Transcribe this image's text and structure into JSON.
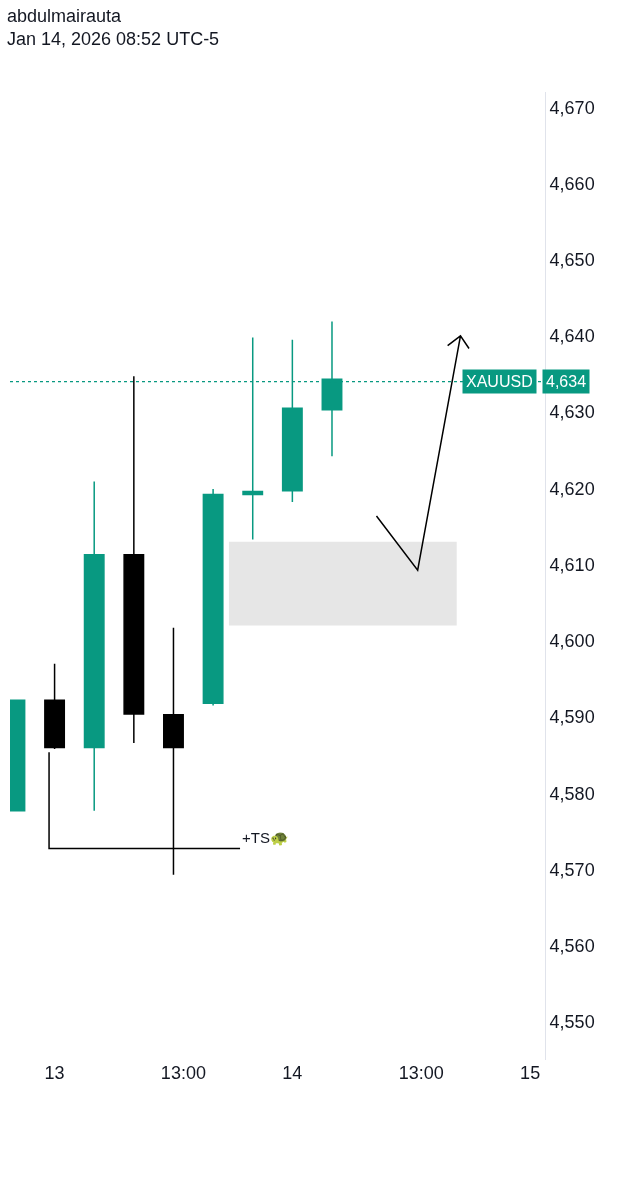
{
  "chart_data": {
    "type": "candlestick",
    "title": "abdulmairauta",
    "subtitle": "Jan 14, 2026 08:52 UTC-5",
    "x": [
      "2026-01-12T20:00",
      "2026-01-13T00:00",
      "2026-01-13T04:00",
      "2026-01-13T08:00",
      "2026-01-13T12:00",
      "2026-01-13T16:00",
      "2026-01-13T20:00",
      "2026-01-14T00:00",
      "2026-01-14T04:00"
    ],
    "ohlc": [
      [
        4577.7,
        4592.2,
        4577.7,
        4592.2
      ],
      [
        4592.2,
        4597,
        4585.8,
        4586.0
      ],
      [
        4586.0,
        4620.9,
        4577.7,
        4611.3
      ],
      [
        4611.3,
        4634.7,
        4586.6,
        4590.4
      ],
      [
        4590.3,
        4601.7,
        4569.3,
        4586.0
      ],
      [
        4591.8,
        4619.9,
        4591.5,
        4619.2
      ],
      [
        4619.2,
        4639.8,
        4613.3,
        4619.6
      ],
      [
        4619.7,
        4639.5,
        4618.2,
        4630.5
      ],
      [
        4630.3,
        4641.9,
        4624.2,
        4634.3
      ]
    ],
    "colors": [
      "#089981",
      "#000000",
      "#089981",
      "#000000",
      "#000000",
      "#089981",
      "#089981",
      "#089981",
      "#089981"
    ],
    "xlim": [
      "2026-01-12T19:30",
      "2026-01-15T01:30"
    ],
    "xticks": [
      {
        "value": "2026-01-13",
        "label": "13"
      },
      {
        "value": "2026-01-13T13:00",
        "label": "13:00"
      },
      {
        "value": "2026-01-14",
        "label": "14"
      },
      {
        "value": "2026-01-14T13:00",
        "label": "13:00"
      },
      {
        "value": "2026-01-15",
        "label": "15"
      }
    ],
    "ylim": [
      4545,
      4672
    ],
    "yticks": [
      {
        "value": 4550,
        "label": "4,550"
      },
      {
        "value": 4560,
        "label": "4,560"
      },
      {
        "value": 4570,
        "label": "4,570"
      },
      {
        "value": 4580,
        "label": "4,580"
      },
      {
        "value": 4590,
        "label": "4,590"
      },
      {
        "value": 4600,
        "label": "4,600"
      },
      {
        "value": 4610,
        "label": "4,610"
      },
      {
        "value": 4620,
        "label": "4,620"
      },
      {
        "value": 4630,
        "label": "4,630"
      },
      {
        "value": 4640,
        "label": "4,640"
      },
      {
        "value": 4650,
        "label": "4,650"
      },
      {
        "value": 4660,
        "label": "4,660"
      },
      {
        "value": 4670,
        "label": "4,670"
      }
    ],
    "ref_lines": [
      {
        "axis": "y",
        "value": 4634,
        "label": "XAUUSD 4,634",
        "color": "#089981",
        "line_style": "dotted"
      }
    ],
    "bands": [
      {
        "axis": "y",
        "from": 4602,
        "to": 4613,
        "color": "#e6e6e6"
      }
    ],
    "annotations": [
      "+TS🐢"
    ],
    "grid": false
  }
}
